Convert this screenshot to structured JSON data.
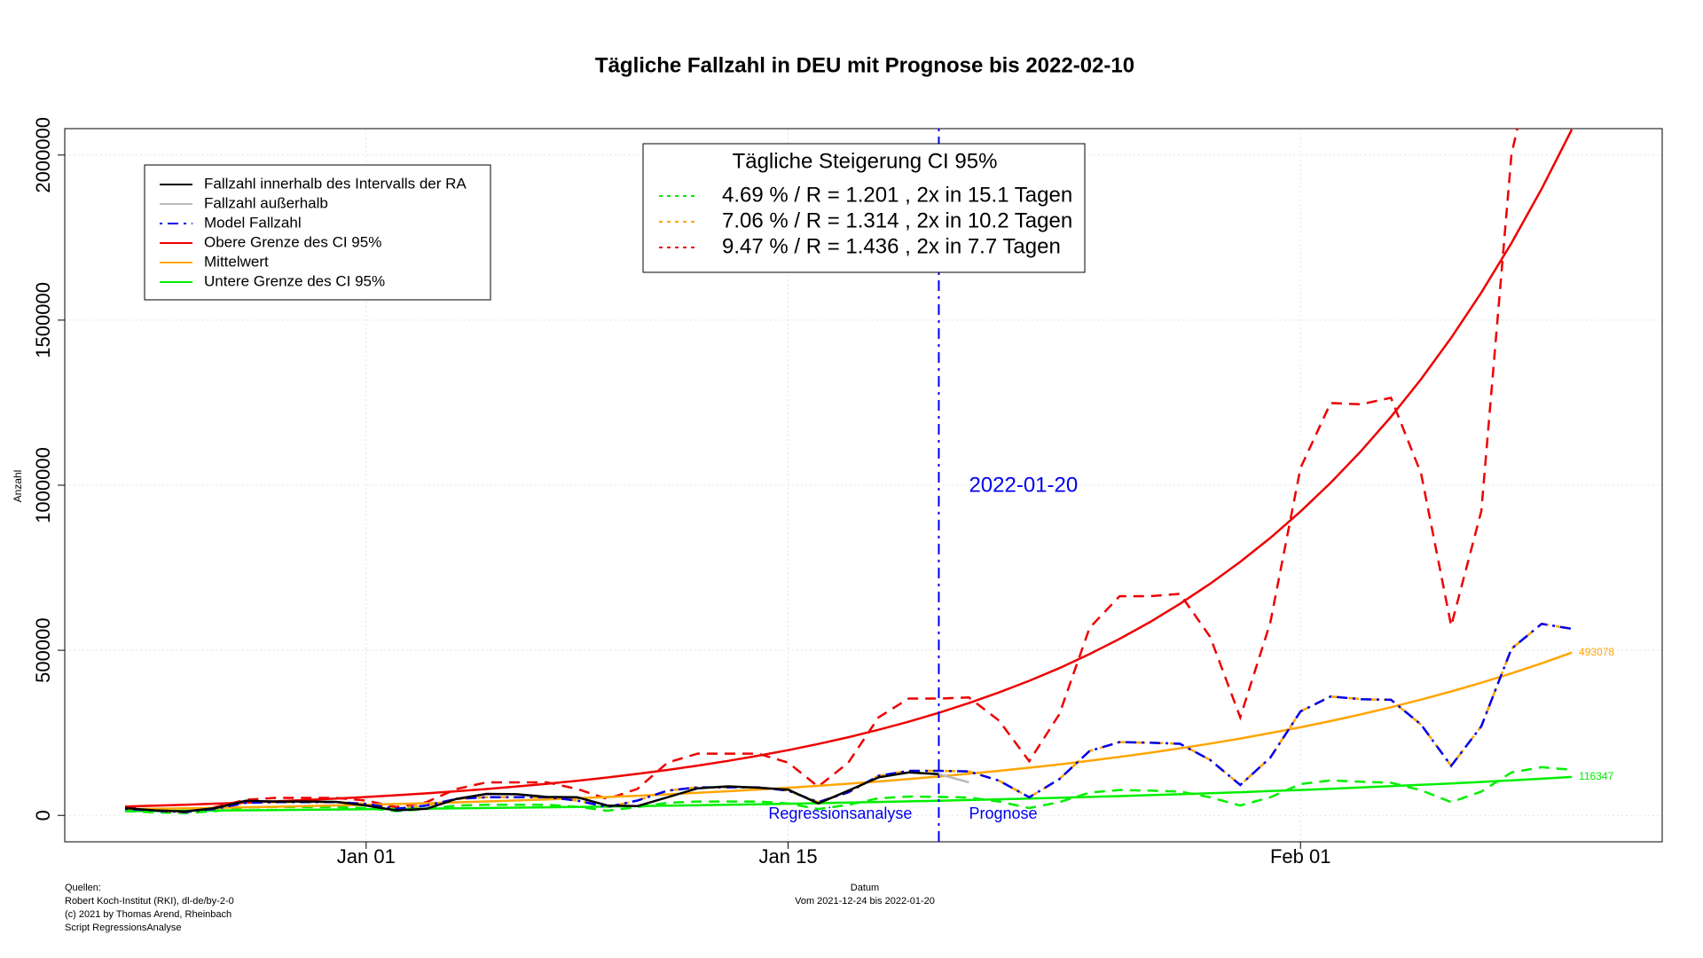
{
  "chart_data": {
    "type": "line",
    "title": "Tägliche Fallzahl in DEU mit Prognose bis 2022-02-10",
    "ylabel": "Anzahl",
    "xlabel": "Datum",
    "subtitle": "Vom 2021-12-24 bis 2022-01-20",
    "sources": [
      "Quellen:",
      "Robert Koch-Institut (RKI), dl-de/by-2-0",
      "(c) 2021 by Thomas Arend, Rheinbach",
      "Script RegressionsAnalyse"
    ],
    "x": [
      "2021-12-24",
      "2021-12-25",
      "2021-12-26",
      "2021-12-27",
      "2021-12-28",
      "2021-12-29",
      "2021-12-30",
      "2021-12-31",
      "2022-01-01",
      "2022-01-02",
      "2022-01-03",
      "2022-01-04",
      "2022-01-05",
      "2022-01-06",
      "2022-01-07",
      "2022-01-08",
      "2022-01-09",
      "2022-01-10",
      "2022-01-11",
      "2022-01-12",
      "2022-01-13",
      "2022-01-14",
      "2022-01-15",
      "2022-01-16",
      "2022-01-17",
      "2022-01-18",
      "2022-01-19",
      "2022-01-20",
      "2022-01-21",
      "2022-01-22",
      "2022-01-23",
      "2022-01-24",
      "2022-01-25",
      "2022-01-26",
      "2022-01-27",
      "2022-01-28",
      "2022-01-29",
      "2022-01-30",
      "2022-01-31",
      "2022-02-01",
      "2022-02-02",
      "2022-02-03",
      "2022-02-04",
      "2022-02-05",
      "2022-02-06",
      "2022-02-07",
      "2022-02-08",
      "2022-02-09",
      "2022-02-10"
    ],
    "xlim": [
      "2021-12-22",
      "2022-02-13"
    ],
    "xticks": [
      {
        "value": "2022-01-01",
        "label": "Jan 01"
      },
      {
        "value": "2022-01-15",
        "label": "Jan 15"
      },
      {
        "value": "2022-02-01",
        "label": "Feb 01"
      }
    ],
    "ylim": [
      -80000,
      2080000
    ],
    "yticks": [
      0,
      500000,
      1000000,
      1500000,
      2000000
    ],
    "grid": true,
    "vline": {
      "x": "2022-01-20",
      "label": "2022-01-20",
      "left_label": "Regressionsanalyse",
      "right_label": "Prognose",
      "color": "#0000ee"
    },
    "series": [
      {
        "name": "Fallzahl innerhalb des Intervalls der RA",
        "color": "#000000",
        "dash": "solid",
        "values": [
          22000,
          15000,
          12000,
          22000,
          44000,
          42000,
          42000,
          41000,
          30000,
          15000,
          20000,
          50000,
          65000,
          64000,
          56000,
          55000,
          30000,
          28000,
          55000,
          82000,
          88000,
          84000,
          78000,
          36000,
          75000,
          115000,
          130000,
          125000,
          null,
          null,
          null,
          null,
          null,
          null,
          null,
          null,
          null,
          null,
          null,
          null,
          null,
          null,
          null,
          null,
          null,
          null,
          null,
          null,
          null
        ]
      },
      {
        "name": "Fallzahl außerhalb",
        "color": "#bbbbbb",
        "dash": "solid",
        "values": [
          null,
          null,
          null,
          null,
          null,
          null,
          null,
          null,
          null,
          null,
          null,
          null,
          null,
          null,
          null,
          null,
          null,
          null,
          null,
          null,
          null,
          null,
          null,
          null,
          null,
          null,
          null,
          125000,
          100000,
          null,
          null,
          null,
          null,
          null,
          null,
          null,
          null,
          null,
          null,
          null,
          null,
          null,
          null,
          null,
          null,
          null,
          null,
          null,
          null
        ]
      },
      {
        "name": "Model Fallzahl",
        "color": "#0000ee",
        "dash": "dotdash",
        "values": [
          20000,
          14000,
          10000,
          20000,
          38000,
          40000,
          40000,
          40000,
          35000,
          20000,
          30000,
          50000,
          55000,
          55000,
          55000,
          45000,
          25000,
          45000,
          75000,
          85000,
          85000,
          85000,
          75000,
          40000,
          70000,
          120000,
          135000,
          135000,
          133000,
          105000,
          55000,
          110000,
          195000,
          222000,
          220000,
          217000,
          168000,
          92000,
          175000,
          315000,
          360000,
          352000,
          350000,
          275000,
          150000,
          270000,
          505000,
          580000,
          565000
        ]
      },
      {
        "name": "Obere Grenze des CI 95%",
        "color": "#ee0000",
        "dash": "solid",
        "values": [
          27000,
          29557,
          32357,
          35421,
          38775,
          42447,
          46467,
          50868,
          55685,
          60958,
          66731,
          73049,
          79966,
          87539,
          95828,
          104903,
          114836,
          125712,
          137616,
          150649,
          164913,
          180530,
          197627,
          216340,
          236828,
          259254,
          283805,
          310681,
          340103,
          372308,
          407565,
          446162,
          488411,
          534662,
          585295,
          640721,
          701395,
          767818,
          840529,
          920128,
          1007265,
          1102653,
          1207073,
          1321380,
          1446512,
          1583496,
          1733451,
          1897609,
          2077307
        ]
      },
      {
        "name": "Mittelwert",
        "color": "#ffa500",
        "dash": "solid",
        "end_label": true,
        "values": [
          18656,
          19973,
          21383,
          22893,
          24509,
          26239,
          28092,
          30075,
          32198,
          34471,
          36905,
          39510,
          42300,
          45286,
          48483,
          51906,
          55571,
          59494,
          63694,
          68191,
          73005,
          78159,
          83677,
          89585,
          95909,
          102680,
          109930,
          117691,
          125999,
          134895,
          144418,
          154614,
          165530,
          177216,
          189727,
          203122,
          217462,
          232815,
          249251,
          266848,
          285687,
          305857,
          327450,
          350568,
          375318,
          401815,
          430183,
          460554,
          493078
        ]
      },
      {
        "name": "Untere Grenze des CI 95%",
        "color": "#00ee00",
        "dash": "solid",
        "end_label": true,
        "values": [
          12886,
          13490,
          14123,
          14786,
          15479,
          16205,
          16965,
          17761,
          18594,
          19466,
          20379,
          21335,
          22336,
          23384,
          24481,
          25629,
          26831,
          28089,
          29406,
          30785,
          32229,
          33741,
          35323,
          36980,
          38714,
          40530,
          42431,
          44421,
          46504,
          48685,
          50968,
          53358,
          55861,
          58481,
          61224,
          64095,
          67101,
          70248,
          73543,
          76992,
          80603,
          84383,
          88341,
          92484,
          96821,
          101362,
          106116,
          111093,
          116347
        ]
      }
    ],
    "ci_title": "Tägliche Steigerung CI  95%",
    "ci_series": [
      {
        "name": "4.69 % / R = 1.201 , 2x in 15.1 Tagen",
        "color": "#00ee00",
        "dash": "dashed",
        "values": [
          13000,
          9000,
          7000,
          13000,
          24000,
          25000,
          25000,
          25000,
          22000,
          13000,
          19000,
          30000,
          32000,
          32000,
          32000,
          26000,
          14000,
          25000,
          38000,
          42000,
          42000,
          42000,
          36000,
          19000,
          32000,
          52000,
          57000,
          56000,
          54000,
          42000,
          22000,
          40000,
          69000,
          77000,
          75000,
          72000,
          55000,
          30000,
          55000,
          95000,
          106000,
          102000,
          99000,
          76000,
          40000,
          72000,
          130000,
          146000,
          138000
        ]
      },
      {
        "name": "7.06 % / R = 1.314 , 2x in 10.2 Tagen",
        "color": "#ffa500",
        "dash": "dashed",
        "values": [
          20000,
          14000,
          10000,
          20000,
          38000,
          40000,
          40000,
          40000,
          35000,
          20000,
          30000,
          50000,
          55000,
          55000,
          55000,
          45000,
          25000,
          45000,
          75000,
          85000,
          85000,
          85000,
          75000,
          40000,
          70000,
          120000,
          135000,
          135000,
          133000,
          105000,
          55000,
          110000,
          195000,
          222000,
          220000,
          217000,
          168000,
          92000,
          175000,
          315000,
          360000,
          352000,
          350000,
          275000,
          150000,
          270000,
          505000,
          580000,
          565000
        ]
      },
      {
        "name": "9.47 % / R = 1.436 , 2x in 7.7 Tagen",
        "color": "#ee0000",
        "dash": "dashed",
        "values": [
          25000,
          15000,
          10000,
          25000,
          47000,
          53000,
          53000,
          53000,
          45000,
          25000,
          40000,
          80000,
          100000,
          100000,
          100000,
          80000,
          50000,
          80000,
          160000,
          187000,
          187000,
          187000,
          160000,
          87000,
          160000,
          297000,
          354000,
          354000,
          357000,
          287000,
          164000,
          307000,
          568000,
          664000,
          664000,
          671000,
          541000,
          297000,
          584000,
          1052000,
          1249000,
          1245000,
          1265000,
          1035000,
          574000,
          922000,
          2003000,
          2400000,
          2350000
        ]
      }
    ]
  }
}
